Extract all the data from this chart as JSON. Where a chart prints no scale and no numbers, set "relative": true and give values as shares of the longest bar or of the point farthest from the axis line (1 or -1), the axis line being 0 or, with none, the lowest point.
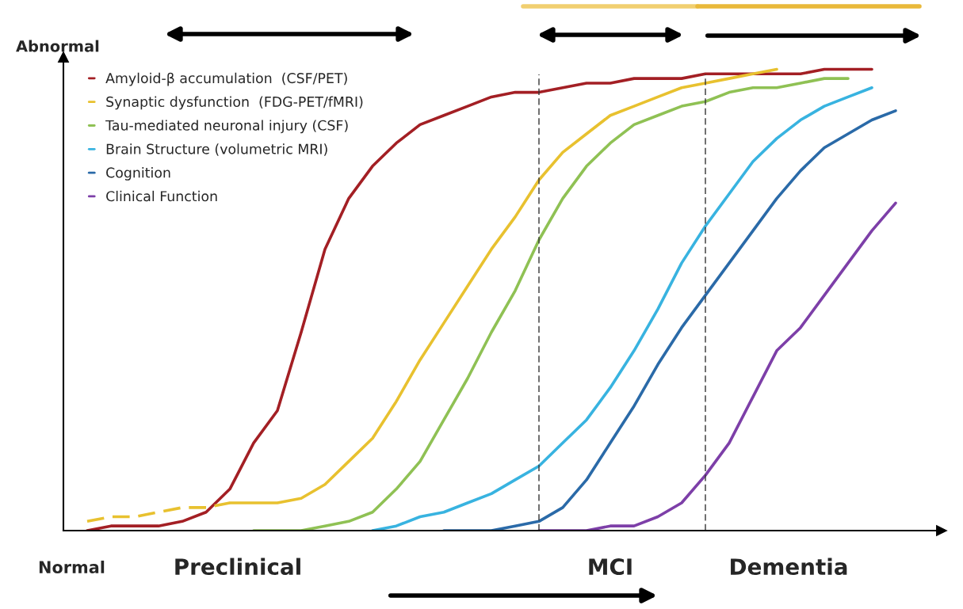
{
  "chart_data": {
    "type": "line",
    "relative": true,
    "legend": "top left",
    "categories": [
      null,
      null,
      null,
      null,
      null,
      null,
      null,
      null,
      null,
      null,
      null,
      null,
      null,
      null,
      null,
      null,
      null,
      null,
      null,
      null,
      null,
      null,
      null,
      null,
      null,
      null,
      null,
      null,
      null,
      null,
      null,
      null,
      null,
      null,
      null,
      null
    ],
    "series": [
      {
        "name": "Amyloid-β accumulation  (CSF/PET)",
        "color": "#a31f24",
        "values": [
          0.0,
          0.01,
          0.01,
          0.01,
          0.02,
          0.04,
          0.09,
          0.19,
          0.26,
          0.43,
          0.61,
          0.72,
          0.79,
          0.84,
          0.88,
          0.9,
          0.92,
          0.94,
          0.95,
          0.95,
          0.96,
          0.97,
          0.97,
          0.98,
          0.98,
          0.98,
          0.99,
          0.99,
          0.99,
          0.99,
          0.99,
          1.0,
          1.0,
          1.0,
          null,
          null
        ]
      },
      {
        "name": "Synaptic dysfunction  (FDG-PET/fMRI)",
        "color": "#e8c12f",
        "values": [
          null,
          null,
          null,
          null,
          null,
          null,
          0.06,
          0.06,
          0.06,
          0.07,
          0.1,
          0.15,
          0.2,
          0.28,
          0.37,
          0.45,
          0.53,
          0.61,
          0.68,
          0.76,
          0.82,
          0.86,
          0.9,
          0.92,
          0.94,
          0.96,
          0.97,
          0.98,
          0.99,
          1.0,
          null,
          null,
          null,
          null,
          null,
          null
        ]
      },
      {
        "color": "#e8c12f",
        "line_style": "dashed",
        "values": [
          0.02,
          0.03,
          0.03,
          0.04,
          0.05,
          0.05,
          0.06,
          null,
          null,
          null,
          null,
          null,
          null,
          null,
          null,
          null,
          null,
          null,
          null,
          null,
          null,
          null,
          null,
          null,
          null,
          null,
          null,
          null,
          null,
          null,
          null,
          null,
          null,
          null,
          null,
          null
        ]
      },
      {
        "name": "Tau-mediated neuronal injury (CSF)",
        "color": "#8fc154",
        "values": [
          null,
          null,
          null,
          null,
          null,
          null,
          null,
          0.0,
          0.0,
          0.0,
          0.01,
          0.02,
          0.04,
          0.09,
          0.15,
          0.24,
          0.33,
          0.43,
          0.52,
          0.63,
          0.72,
          0.79,
          0.84,
          0.88,
          0.9,
          0.92,
          0.93,
          0.95,
          0.96,
          0.96,
          0.97,
          0.98,
          0.98,
          null,
          null,
          null
        ]
      },
      {
        "name": "Brain Structure (volumetric MRI)",
        "color": "#38b3e0",
        "values": [
          null,
          null,
          null,
          null,
          null,
          null,
          null,
          null,
          null,
          null,
          null,
          null,
          0.0,
          0.01,
          0.03,
          0.04,
          0.06,
          0.08,
          0.11,
          0.14,
          0.19,
          0.24,
          0.31,
          0.39,
          0.48,
          0.58,
          0.66,
          0.73,
          0.8,
          0.85,
          0.89,
          0.92,
          0.94,
          0.96,
          null,
          null
        ]
      },
      {
        "name": "Cognition",
        "color": "#2a6aa8",
        "values": [
          null,
          null,
          null,
          null,
          null,
          null,
          null,
          null,
          null,
          null,
          null,
          null,
          null,
          null,
          null,
          0.0,
          0.0,
          0.0,
          0.01,
          0.02,
          0.05,
          0.11,
          0.19,
          0.27,
          0.36,
          0.44,
          0.51,
          0.58,
          0.65,
          0.72,
          0.78,
          0.83,
          0.86,
          0.89,
          0.91,
          null
        ]
      },
      {
        "name": "Clinical Function",
        "color": "#7d3fa8",
        "values": [
          null,
          null,
          null,
          null,
          null,
          null,
          null,
          null,
          null,
          null,
          null,
          null,
          null,
          null,
          null,
          null,
          null,
          null,
          null,
          0.0,
          0.0,
          0.0,
          0.01,
          0.01,
          0.03,
          0.06,
          0.12,
          0.19,
          0.29,
          0.39,
          0.44,
          0.51,
          0.58,
          0.65,
          0.71,
          null
        ]
      }
    ],
    "annotations": [
      "Abnormal",
      "Normal",
      "Preclinical",
      "MCI",
      "Dementia"
    ]
  }
}
